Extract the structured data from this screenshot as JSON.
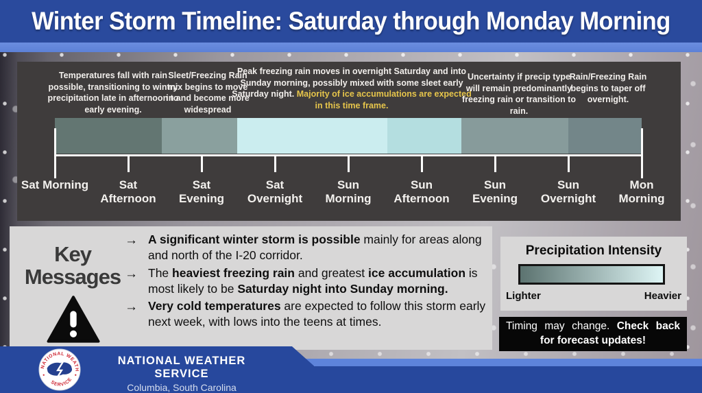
{
  "header": {
    "title": "Winter Storm Timeline: Saturday through Monday Morning"
  },
  "timeline": {
    "annotations": [
      {
        "text": "Temperatures fall with rain possible, transitioning to wintry precipitation late in afternoon to early evening.",
        "highlight": ""
      },
      {
        "text": "Sleet/Freezing Rain mix begins to move in and become more widespread",
        "highlight": ""
      },
      {
        "text": "Peak freezing rain moves in overnight Saturday and into Sunday morning, possibly mixed with some sleet early Saturday night. ",
        "highlight": "Majority of ice accumulations are expected in this time frame."
      },
      {
        "text": "Uncertainty if precip type will remain predominantly freezing rain or transition to rain.",
        "highlight": ""
      },
      {
        "text": "Rain/Freezing Rain begins to taper off overnight.",
        "highlight": ""
      }
    ],
    "bar_segments": [
      {
        "color": "#637672",
        "width_pct": 18.2
      },
      {
        "color": "#8aa09e",
        "width_pct": 12.9
      },
      {
        "color": "#cbedef",
        "width_pct": 25.6
      },
      {
        "color": "#b4dee0",
        "width_pct": 12.6
      },
      {
        "color": "#879b9b",
        "width_pct": 18.2
      },
      {
        "color": "#738689",
        "width_pct": 12.5
      }
    ],
    "ticks": [
      "Sat Morning",
      "Sat\nAfternoon",
      "Sat\nEvening",
      "Sat\nOvernight",
      "Sun\nMorning",
      "Sun\nAfternoon",
      "Sun\nEvening",
      "Sun\nOvernight",
      "Mon\nMorning"
    ]
  },
  "key_messages": {
    "title": "Key\nMessages",
    "bullet_icon": "→",
    "bullets": [
      {
        "segments": [
          {
            "text": "A significant winter storm is possible",
            "bold": true
          },
          {
            "text": " mainly for areas along and north of the I-20 corridor.",
            "bold": false
          }
        ]
      },
      {
        "segments": [
          {
            "text": "The ",
            "bold": false
          },
          {
            "text": "heaviest freezing rain",
            "bold": true
          },
          {
            "text": " and greatest ",
            "bold": false
          },
          {
            "text": "ice accumulation",
            "bold": true
          },
          {
            "text": " is most likely to be ",
            "bold": false
          },
          {
            "text": "Saturday night into Sunday morning.",
            "bold": true
          }
        ]
      },
      {
        "segments": [
          {
            "text": "Very cold temperatures",
            "bold": true
          },
          {
            "text": " are expected to follow this storm early next week, with lows into the teens at times.",
            "bold": false
          }
        ]
      }
    ]
  },
  "legend": {
    "title": "Precipitation Intensity",
    "left_label": "Lighter",
    "right_label": "Heavier",
    "gradient_from": "#5c7370",
    "gradient_to": "#def5f5"
  },
  "notice": {
    "segments": [
      {
        "text": "Timing may change. ",
        "bold": false
      },
      {
        "text": "Check back for forecast updates!",
        "bold": true
      }
    ]
  },
  "footer": {
    "org": "NATIONAL WEATHER SERVICE",
    "location": "Columbia, South Carolina"
  },
  "colors": {
    "header_blue": "#2a4a9d",
    "accent_stripe": "#5e84db",
    "panel_dark": "#3f3c3c",
    "highlight_yellow": "#e6c54b",
    "footer_blue": "#27489d"
  }
}
